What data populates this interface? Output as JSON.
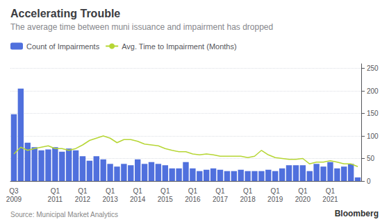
{
  "chart_data": {
    "type": "bar",
    "title": "Accelerating Trouble",
    "subtitle": "The average time between muni issuance and impairment has dropped",
    "annotations": [
      "Source: Municipal Market Analytics",
      "Bloomberg"
    ],
    "categories": [
      "Q3\n2009",
      null,
      null,
      null,
      null,
      null,
      "Q1\n2011",
      null,
      null,
      null,
      "Q1\n2012",
      null,
      null,
      null,
      "Q1\n2013",
      null,
      null,
      null,
      "Q1\n2014",
      null,
      null,
      null,
      "Q1\n2015",
      null,
      null,
      null,
      "Q1\n2016",
      null,
      null,
      null,
      "Q1\n2017",
      null,
      null,
      null,
      "Q1\n2018",
      null,
      null,
      null,
      "Q1\n2019",
      null,
      null,
      null,
      "Q1\n2020",
      null,
      null,
      null,
      "Q1\n2021",
      null,
      null,
      null,
      null
    ],
    "series": [
      {
        "name": "Count of Impairments",
        "type": "bar",
        "values": [
          148,
          205,
          85,
          75,
          68,
          70,
          75,
          65,
          72,
          68,
          55,
          45,
          55,
          48,
          38,
          32,
          38,
          35,
          48,
          38,
          42,
          38,
          35,
          28,
          28,
          42,
          28,
          22,
          25,
          28,
          25,
          22,
          22,
          25,
          22,
          22,
          22,
          25,
          22,
          28,
          35,
          35,
          35,
          22,
          38,
          32,
          42,
          28,
          32,
          38,
          8
        ]
      },
      {
        "name": "Avg. Time to Impairment (Months)",
        "type": "line",
        "values": [
          60,
          75,
          68,
          72,
          75,
          78,
          72,
          72,
          68,
          72,
          80,
          90,
          95,
          100,
          95,
          85,
          92,
          92,
          88,
          82,
          80,
          78,
          72,
          68,
          65,
          65,
          60,
          58,
          60,
          58,
          55,
          55,
          55,
          55,
          52,
          55,
          68,
          58,
          52,
          50,
          48,
          48,
          50,
          38,
          42,
          42,
          45,
          42,
          38,
          38,
          32
        ]
      }
    ],
    "ylim": [
      0,
      260
    ],
    "yticks": [
      0,
      50,
      100,
      150,
      200,
      250
    ],
    "grid": true,
    "legend": "upper left"
  }
}
